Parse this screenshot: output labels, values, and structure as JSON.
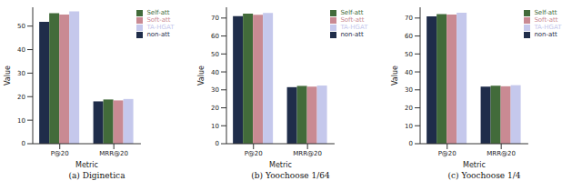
{
  "chart_data": [
    {
      "type": "bar",
      "title": "(a) Diginetica",
      "x_label": "Metric",
      "y_label": "Value",
      "categories": [
        "P@20",
        "MRR@20"
      ],
      "series": [
        {
          "name": "non-att",
          "color": "#1f2d4a",
          "values": [
            51.8,
            18.0
          ]
        },
        {
          "name": "Self-att",
          "color": "#426b3a",
          "values": [
            55.5,
            18.8
          ]
        },
        {
          "name": "Soft-att",
          "color": "#c98a93",
          "values": [
            54.9,
            18.4
          ]
        },
        {
          "name": "TA-HGAT",
          "color": "#c5c8ec",
          "values": [
            56.3,
            19.0
          ]
        }
      ],
      "ylim": [
        0,
        58
      ],
      "yticks": [
        0,
        10,
        20,
        30,
        40,
        50
      ],
      "grid": false,
      "legend": "upper right"
    },
    {
      "type": "bar",
      "title": "(b) Yoochoose 1/64",
      "x_label": "Metric",
      "y_label": "Value",
      "categories": [
        "P@20",
        "MRR@20"
      ],
      "series": [
        {
          "name": "non-att",
          "color": "#1f2d4a",
          "values": [
            71.0,
            31.5
          ]
        },
        {
          "name": "Self-att",
          "color": "#426b3a",
          "values": [
            72.5,
            32.2
          ]
        },
        {
          "name": "Soft-att",
          "color": "#c98a93",
          "values": [
            71.8,
            31.8
          ]
        },
        {
          "name": "TA-HGAT",
          "color": "#c5c8ec",
          "values": [
            72.8,
            32.4
          ]
        }
      ],
      "ylim": [
        0,
        76
      ],
      "yticks": [
        0,
        10,
        20,
        30,
        40,
        50,
        60,
        70
      ],
      "grid": false,
      "legend": "upper right"
    },
    {
      "type": "bar",
      "title": "(c) Yoochoose 1/4",
      "x_label": "Metric",
      "y_label": "Value",
      "categories": [
        "P@20",
        "MRR@20"
      ],
      "series": [
        {
          "name": "non-att",
          "color": "#1f2d4a",
          "values": [
            70.9,
            31.8
          ]
        },
        {
          "name": "Self-att",
          "color": "#426b3a",
          "values": [
            72.2,
            32.3
          ]
        },
        {
          "name": "Soft-att",
          "color": "#c98a93",
          "values": [
            71.9,
            32.0
          ]
        },
        {
          "name": "TA-HGAT",
          "color": "#c5c8ec",
          "values": [
            72.9,
            32.6
          ]
        }
      ],
      "ylim": [
        0,
        76
      ],
      "yticks": [
        0,
        10,
        20,
        30,
        40,
        50,
        60,
        70
      ],
      "grid": false,
      "legend": "upper right"
    }
  ]
}
